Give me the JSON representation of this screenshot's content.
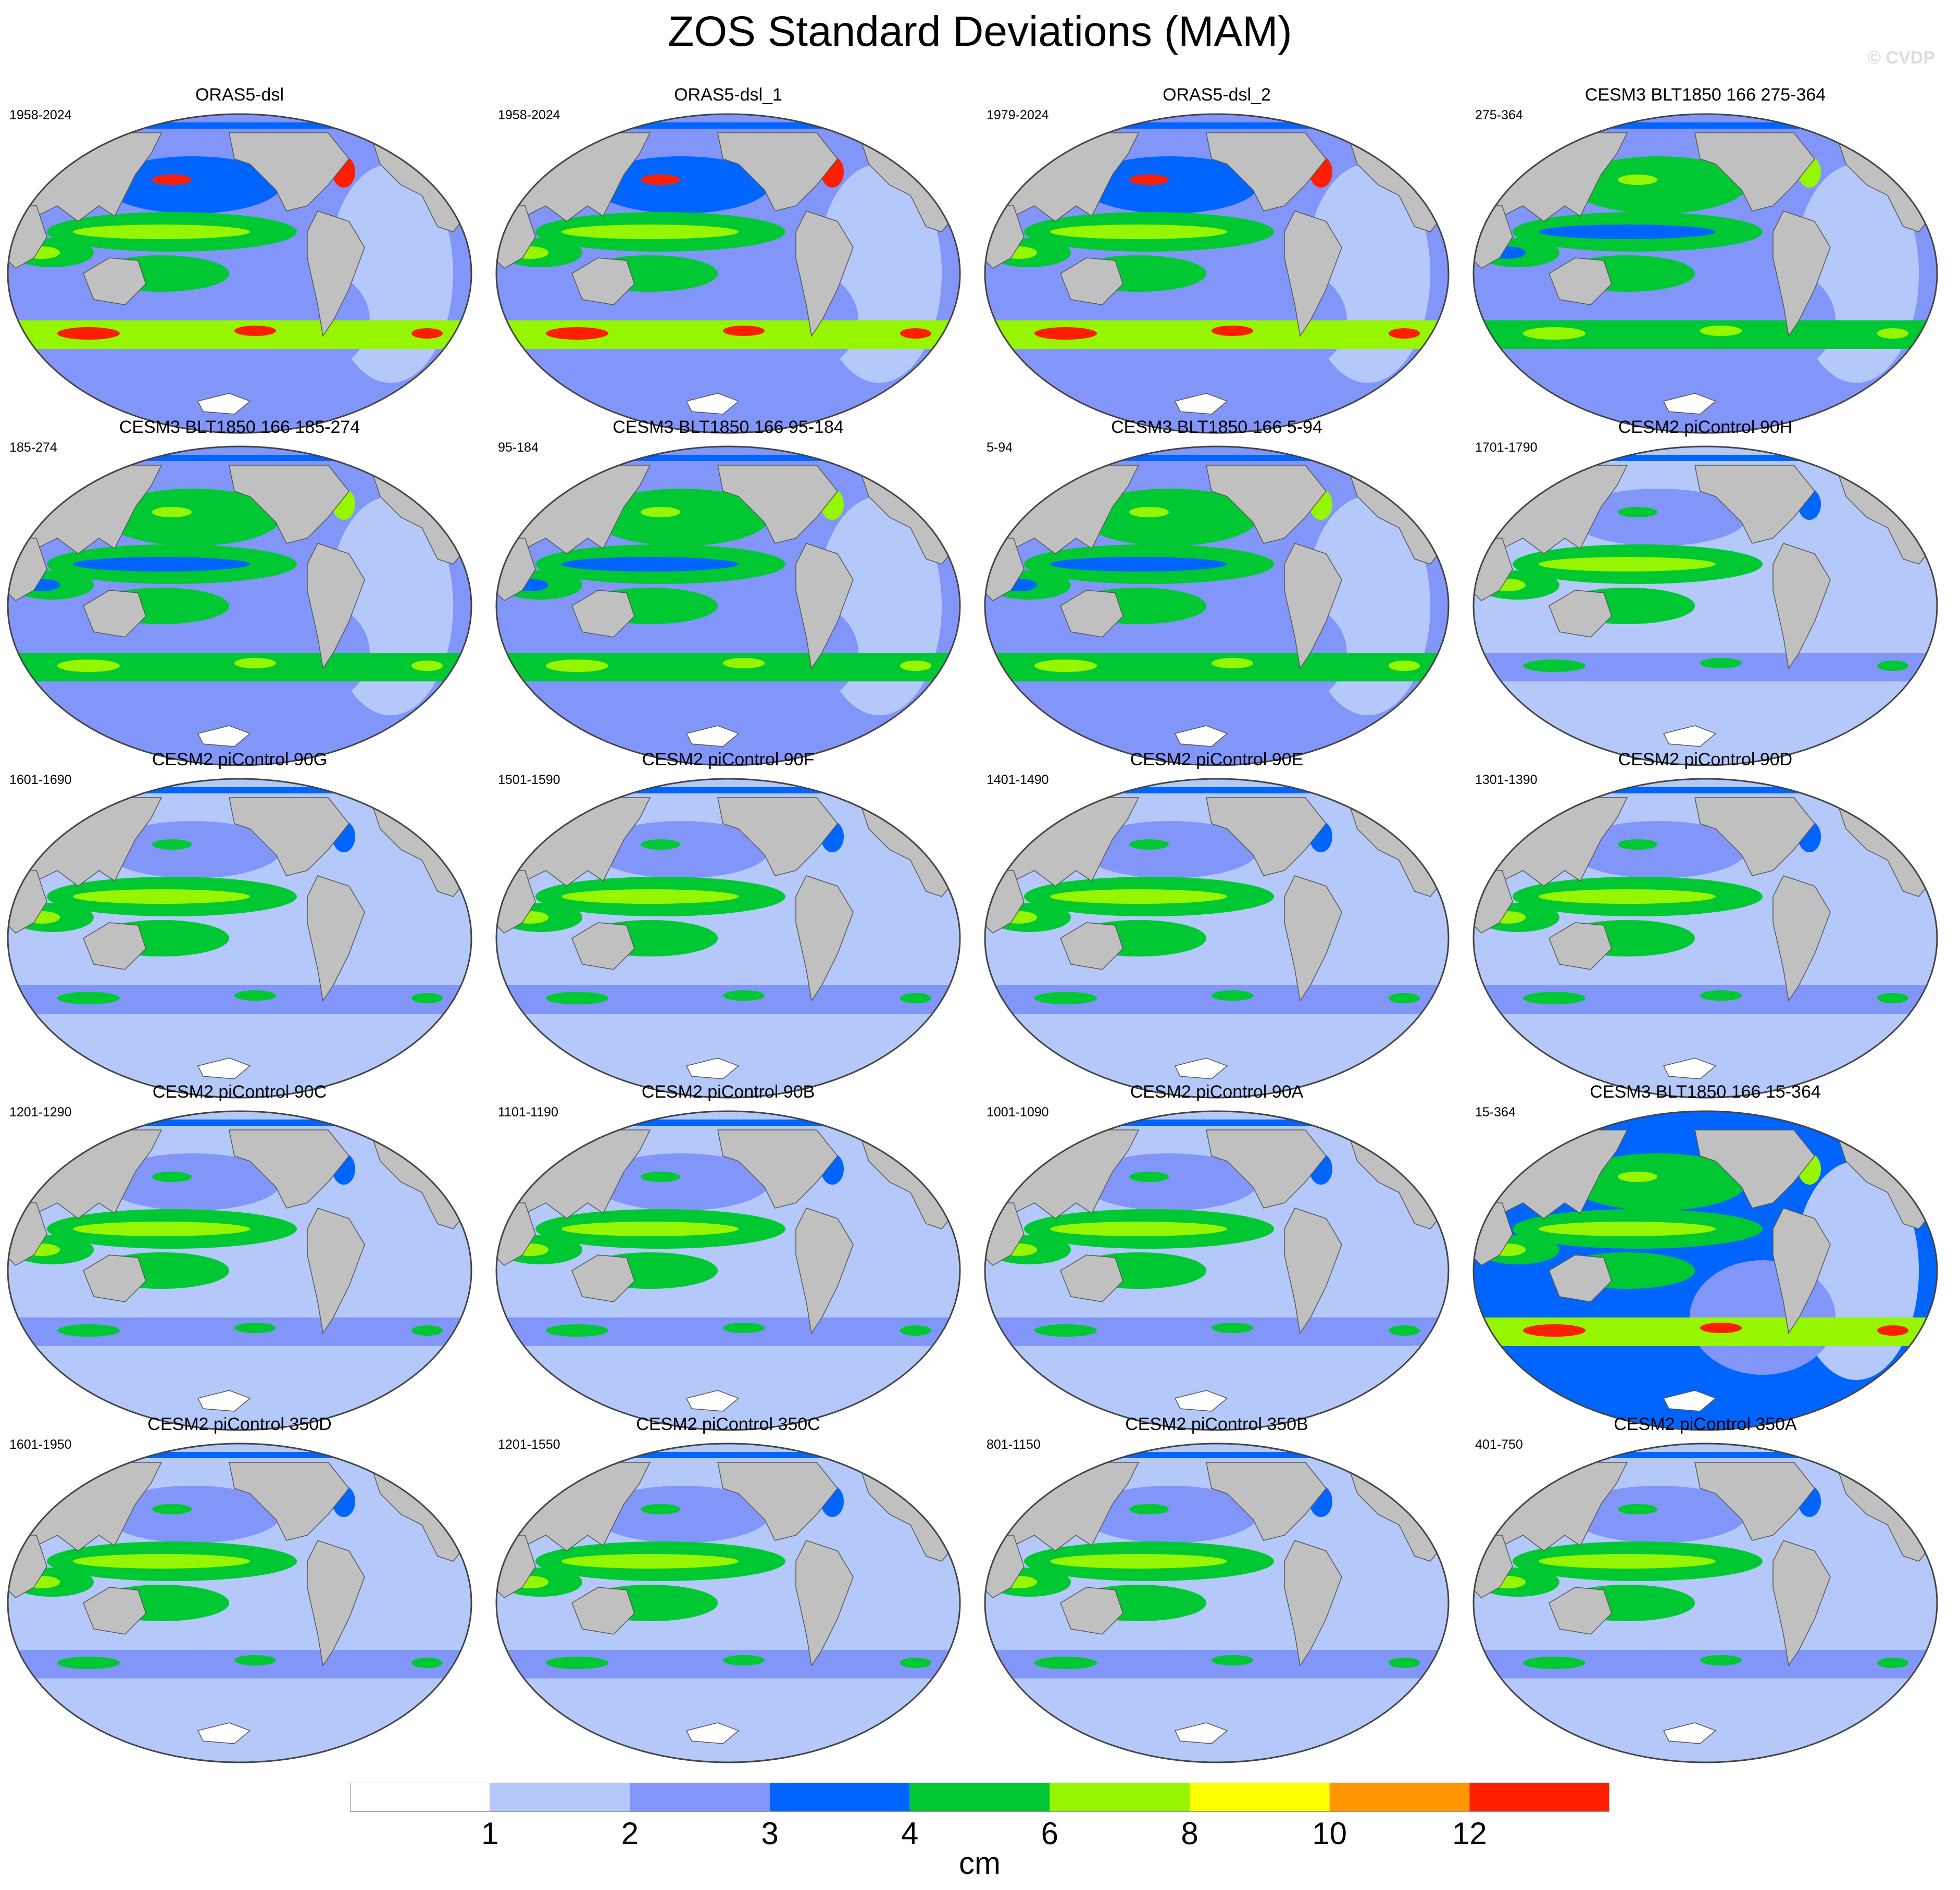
{
  "title": "ZOS Standard Deviations (MAM)",
  "watermark": "© CVDP",
  "panels": [
    {
      "title": "ORAS5-dsl",
      "period": "1958-2024",
      "style": "obs"
    },
    {
      "title": "ORAS5-dsl_1",
      "period": "1958-2024",
      "style": "obs"
    },
    {
      "title": "ORAS5-dsl_2",
      "period": "1979-2024",
      "style": "obs"
    },
    {
      "title": "CESM3 BLT1850 166 275-364",
      "period": "275-364",
      "style": "cesm3"
    },
    {
      "title": "CESM3 BLT1850 166 185-274",
      "period": "185-274",
      "style": "cesm3"
    },
    {
      "title": "CESM3 BLT1850 166 95-184",
      "period": "95-184",
      "style": "cesm3"
    },
    {
      "title": "CESM3 BLT1850 166 5-94",
      "period": "5-94",
      "style": "cesm3"
    },
    {
      "title": "CESM2 piControl 90H",
      "period": "1701-1790",
      "style": "cesm2"
    },
    {
      "title": "CESM2 piControl 90G",
      "period": "1601-1690",
      "style": "cesm2"
    },
    {
      "title": "CESM2 piControl 90F",
      "period": "1501-1590",
      "style": "cesm2"
    },
    {
      "title": "CESM2 piControl 90E",
      "period": "1401-1490",
      "style": "cesm2"
    },
    {
      "title": "CESM2 piControl 90D",
      "period": "1301-1390",
      "style": "cesm2"
    },
    {
      "title": "CESM2 piControl 90C",
      "period": "1201-1290",
      "style": "cesm2"
    },
    {
      "title": "CESM2 piControl 90B",
      "period": "1101-1190",
      "style": "cesm2"
    },
    {
      "title": "CESM2 piControl 90A",
      "period": "1001-1090",
      "style": "cesm2"
    },
    {
      "title": "CESM3 BLT1850 166 15-364",
      "period": "15-364",
      "style": "cesm3long"
    },
    {
      "title": "CESM2 piControl 350D",
      "period": "1601-1950",
      "style": "cesm2"
    },
    {
      "title": "CESM2 piControl 350C",
      "period": "1201-1550",
      "style": "cesm2"
    },
    {
      "title": "CESM2 piControl 350B",
      "period": "801-1150",
      "style": "cesm2"
    },
    {
      "title": "CESM2 piControl 350A",
      "period": "401-750",
      "style": "cesm2"
    }
  ],
  "colorbar": {
    "colors": [
      "#ffffff",
      "#b4c8fa",
      "#8296fa",
      "#0064ff",
      "#00c832",
      "#96f500",
      "#ffff00",
      "#ff9600",
      "#ff1e00"
    ],
    "labels": [
      "1",
      "2",
      "3",
      "4",
      "6",
      "8",
      "10",
      "12"
    ],
    "unit": "cm"
  },
  "land_color": "#c0c0c0"
}
